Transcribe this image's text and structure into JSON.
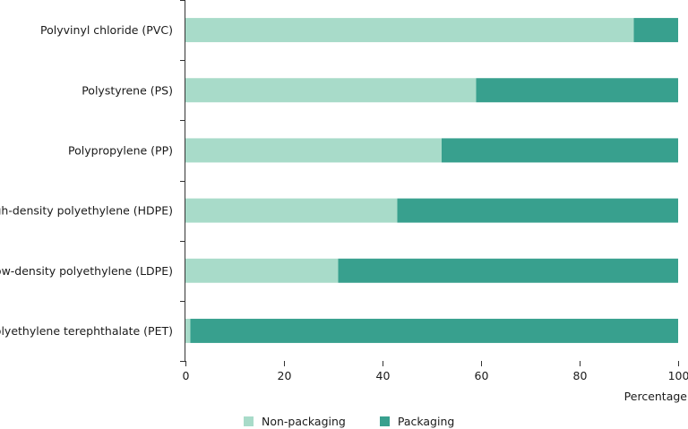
{
  "chart_data": {
    "type": "bar",
    "orientation": "horizontal",
    "stacked": true,
    "categories": [
      "Polyvinyl chloride (PVC)",
      "Polystyrene (PS)",
      "Polypropylene (PP)",
      "High-density polyethylene (HDPE)",
      "Low-density polyethylene (LDPE)",
      "Polyethylene terephthalate (PET)"
    ],
    "series": [
      {
        "name": "Non-packaging",
        "color": "#a8dbc9",
        "values": [
          91,
          59,
          52,
          43,
          31,
          1
        ]
      },
      {
        "name": "Packaging",
        "color": "#38a08e",
        "values": [
          9,
          41,
          48,
          57,
          69,
          99
        ]
      }
    ],
    "xlim": [
      0,
      100
    ],
    "xticks": [
      "0",
      "20",
      "40",
      "60",
      "80",
      "100"
    ],
    "xlabel": "Percentage",
    "ylabel": "",
    "title": "",
    "grid": false,
    "legend_position": "bottom"
  }
}
